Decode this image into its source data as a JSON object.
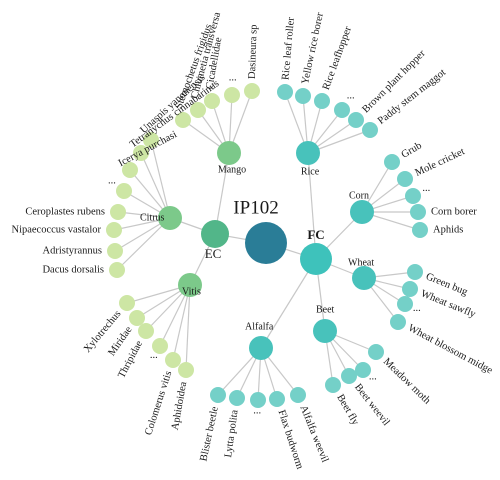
{
  "root": {
    "label": "IP102"
  },
  "superclasses": {
    "ec": "EC",
    "fc": "FC"
  },
  "groups": {
    "mango": {
      "label": "Mango",
      "leaves": [
        "Sternochetus frigidus",
        "Chlumetia transversa",
        "Cicadellidae",
        "...",
        "Dasineura sp"
      ]
    },
    "citrus": {
      "label": "Citrus",
      "leaves": [
        "Unaspis yanonensis",
        "Tetranychus cinnabarinus",
        "Icerya purchasi",
        "...",
        "Ceroplastes rubens",
        "Nipaecoccus vastalor",
        "Adristyrannus",
        "Dacus dorsalis"
      ]
    },
    "vitis": {
      "label": "Vitis",
      "leaves": [
        "Xylotrechus",
        "Miridae",
        "Thripidae",
        "...",
        "Colomerus vitis",
        "Aphidoidea"
      ]
    },
    "rice": {
      "label": "Rice",
      "leaves": [
        "Rice leaf roller",
        "Yellow rice borer",
        "Rice leafhopper",
        "...",
        "Brown plant hopper",
        "Paddy stem maggot"
      ]
    },
    "corn": {
      "label": "Corn",
      "leaves": [
        "Grub",
        "Mole cricket",
        "...",
        "Corn borer",
        "Aphids"
      ]
    },
    "wheat": {
      "label": "Wheat",
      "leaves": [
        "Green bug",
        "Wheat sawfly",
        "...",
        "Wheat blossom midge"
      ]
    },
    "beet": {
      "label": "Beet",
      "leaves": [
        "Meadow moth",
        "...",
        "Beet weevil",
        "Beet fly"
      ]
    },
    "alfalfa": {
      "label": "Alfalfa",
      "leaves": [
        "Blister beetle",
        "Lytta polita",
        "...",
        "Flax budworm",
        "Alfalfa weevil"
      ]
    }
  },
  "colors": {
    "root": "#2a7d97",
    "ec": "#52b689",
    "ec_group": "#7cc98a",
    "ec_leaf": "#cde6a4",
    "fc": "#3ec2bb",
    "fc_group": "#48c2bb",
    "fc_leaf": "#74d0c8",
    "link": "#c8c8c8"
  }
}
